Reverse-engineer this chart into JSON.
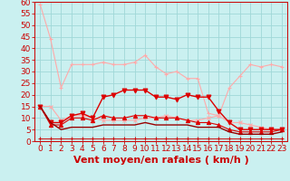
{
  "xlabel": "Vent moyen/en rafales ( km/h )",
  "bg_color": "#caf0f0",
  "grid_color": "#a0d8d8",
  "xlim": [
    -0.5,
    23.5
  ],
  "ylim": [
    0,
    60
  ],
  "yticks": [
    0,
    5,
    10,
    15,
    20,
    25,
    30,
    35,
    40,
    45,
    50,
    55,
    60
  ],
  "xticks": [
    0,
    1,
    2,
    3,
    4,
    5,
    6,
    7,
    8,
    9,
    10,
    11,
    12,
    13,
    14,
    15,
    16,
    17,
    18,
    19,
    20,
    21,
    22,
    23
  ],
  "hours": [
    0,
    1,
    2,
    3,
    4,
    5,
    6,
    7,
    8,
    9,
    10,
    11,
    12,
    13,
    14,
    15,
    16,
    17,
    18,
    19,
    20,
    21,
    22,
    23
  ],
  "series": [
    {
      "name": "gust_pale",
      "color": "#ffaaaa",
      "linewidth": 0.8,
      "marker": "+",
      "markersize": 3.5,
      "values": [
        59,
        44,
        23,
        33,
        33,
        33,
        34,
        33,
        33,
        34,
        37,
        32,
        29,
        30,
        27,
        27,
        12,
        11,
        23,
        28,
        33,
        32,
        33,
        32
      ]
    },
    {
      "name": "mean_pale",
      "color": "#ffaaaa",
      "linewidth": 0.8,
      "marker": "x",
      "markersize": 3,
      "values": [
        15,
        15,
        9,
        11,
        11,
        10,
        9,
        9,
        9,
        9,
        10,
        10,
        11,
        10,
        9,
        9,
        10,
        11,
        8,
        8,
        7,
        6,
        5,
        5
      ]
    },
    {
      "name": "gust_red",
      "color": "#dd0000",
      "linewidth": 1.0,
      "marker": "v",
      "markersize": 3.5,
      "values": [
        15,
        8,
        8,
        11,
        12,
        10,
        19,
        20,
        22,
        22,
        22,
        19,
        19,
        18,
        20,
        19,
        19,
        13,
        8,
        5,
        5,
        5,
        5,
        5
      ]
    },
    {
      "name": "mean_red_triangle",
      "color": "#dd0000",
      "linewidth": 0.8,
      "marker": "^",
      "markersize": 3,
      "values": [
        15,
        7,
        7,
        10,
        10,
        9,
        11,
        10,
        10,
        11,
        11,
        10,
        10,
        10,
        9,
        8,
        8,
        7,
        5,
        4,
        4,
        4,
        4,
        5
      ]
    },
    {
      "name": "mean_dark",
      "color": "#990000",
      "linewidth": 1.0,
      "marker": null,
      "markersize": 0,
      "values": [
        15,
        8,
        5,
        6,
        6,
        6,
        7,
        7,
        7,
        7,
        8,
        7,
        7,
        7,
        7,
        6,
        6,
        6,
        4,
        3,
        3,
        3,
        3,
        4
      ]
    },
    {
      "name": "baseline_flat",
      "color": "#cc1111",
      "linewidth": 0.7,
      "marker": "+",
      "markersize": 2.5,
      "values": [
        1,
        1,
        1,
        1,
        1,
        1,
        1,
        1,
        1,
        1,
        1,
        1,
        1,
        1,
        1,
        1,
        1,
        1,
        1,
        1,
        1,
        1,
        1,
        1
      ]
    }
  ],
  "xlabel_color": "#cc0000",
  "xlabel_fontsize": 8,
  "tick_color": "#cc0000",
  "tick_fontsize": 6.5
}
